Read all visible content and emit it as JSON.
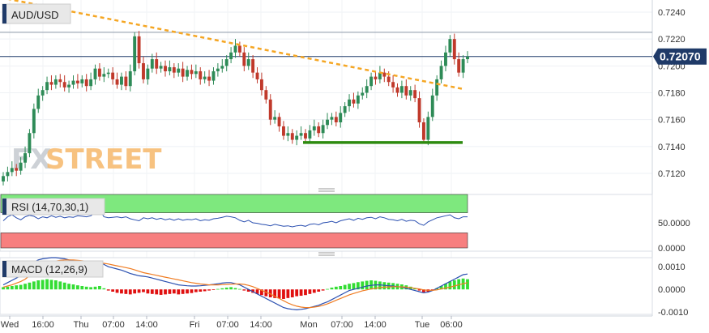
{
  "window": {
    "symbol": "AUD/USD"
  },
  "watermark": {
    "fx": "FX",
    "street": "STREET"
  },
  "price_panel": {
    "current_price_label": "0.72070",
    "y_ticks": [
      "0.7240",
      "0.7220",
      "0.7200",
      "0.7180",
      "0.7160",
      "0.7140",
      "0.7120"
    ]
  },
  "rsi_panel": {
    "label": "RSI (14,70,30,1)",
    "y_ticks": [
      "50.0000",
      "0.0000"
    ]
  },
  "macd_panel": {
    "label": "MACD (12,26,9)",
    "y_ticks": [
      "0.0010",
      "0.0000",
      "-0.0010"
    ]
  },
  "x_axis": {
    "labels": [
      "Wed",
      "16:00",
      "Thu",
      "07:00",
      "14:00",
      "Fri",
      "07:00",
      "14:00",
      "Mon",
      "07:00",
      "14:00",
      "Tue",
      "06:00"
    ]
  },
  "colors": {
    "up": "#2e8b57",
    "down": "#c0392b",
    "trendline": "#f5a623",
    "support": "#2e8b10",
    "price_line": "#1f3a68",
    "rsi_line": "#2a4fb0",
    "rsi_over": "#7ee87e",
    "rsi_under": "#f77f7f",
    "macd_line": "#2a4fb0",
    "signal_line": "#f07c22",
    "hist_pos": "#33dd33",
    "hist_neg": "#e01010"
  },
  "chart_data": [
    {
      "type": "candlestick",
      "title": "AUD/USD",
      "ylim": [
        0.711,
        0.725
      ],
      "current_price": 0.7207,
      "resistance_level": 0.7225,
      "x_labels": [
        "Wed",
        "16:00",
        "Thu",
        "07:00",
        "14:00",
        "Fri",
        "07:00",
        "14:00",
        "Mon",
        "07:00",
        "14:00",
        "Tue",
        "06:00"
      ],
      "close": [
        0.7118,
        0.7121,
        0.7124,
        0.7122,
        0.7128,
        0.7135,
        0.715,
        0.7168,
        0.7178,
        0.7182,
        0.7188,
        0.7186,
        0.719,
        0.7188,
        0.7184,
        0.7186,
        0.7189,
        0.7187,
        0.719,
        0.7185,
        0.719,
        0.7198,
        0.7192,
        0.7194,
        0.7195,
        0.719,
        0.7186,
        0.7192,
        0.7185,
        0.7196,
        0.7222,
        0.7202,
        0.719,
        0.7198,
        0.7205,
        0.7198,
        0.72,
        0.7196,
        0.7199,
        0.7195,
        0.7198,
        0.7192,
        0.7197,
        0.7194,
        0.7196,
        0.719,
        0.7192,
        0.7189,
        0.7196,
        0.7198,
        0.72,
        0.7205,
        0.721,
        0.7215,
        0.721,
        0.72,
        0.7205,
        0.7195,
        0.719,
        0.7182,
        0.7175,
        0.716,
        0.7162,
        0.7155,
        0.7148,
        0.715,
        0.7145,
        0.7148,
        0.715,
        0.7146,
        0.7152,
        0.7155,
        0.715,
        0.7156,
        0.716,
        0.7162,
        0.7158,
        0.7165,
        0.717,
        0.7175,
        0.7172,
        0.7178,
        0.718,
        0.7185,
        0.7192,
        0.719,
        0.7195,
        0.7192,
        0.7188,
        0.7184,
        0.718,
        0.7185,
        0.7178,
        0.7182,
        0.7176,
        0.7158,
        0.7145,
        0.7162,
        0.7178,
        0.719,
        0.72,
        0.721,
        0.722,
        0.7205,
        0.7195,
        0.7205,
        0.7207
      ]
    },
    {
      "type": "line",
      "title": "RSI (14,70,30,1)",
      "ylim": [
        0,
        100
      ],
      "overbought": 70,
      "oversold": 30,
      "values": [
        54,
        62,
        66,
        60,
        56,
        62,
        65,
        63,
        58,
        62,
        60,
        64,
        61,
        63,
        60,
        62,
        61,
        64,
        63,
        62,
        64,
        70,
        75,
        62,
        60,
        61,
        62,
        60,
        62,
        58,
        56,
        54,
        60,
        58,
        60,
        57,
        59,
        56,
        58,
        55,
        58,
        55,
        57,
        56,
        58,
        54,
        56,
        55,
        58,
        59,
        61,
        63,
        62,
        60,
        55,
        52,
        55,
        50,
        49,
        47,
        46,
        44,
        47,
        45,
        43,
        44,
        42,
        44,
        45,
        43,
        47,
        48,
        46,
        50,
        51,
        53,
        50,
        54,
        56,
        58,
        55,
        59,
        57,
        60,
        61,
        58,
        62,
        60,
        57,
        56,
        54,
        57,
        53,
        55,
        54,
        48,
        45,
        52,
        56,
        60,
        62,
        64,
        66,
        60,
        58,
        62,
        62
      ]
    },
    {
      "type": "bar+line",
      "title": "MACD (12,26,9)",
      "ylim": [
        -0.0011,
        0.0014
      ],
      "histogram": [
        0.0001,
        0.00012,
        0.00015,
        0.00018,
        0.0002,
        0.00025,
        0.0003,
        0.00035,
        0.0004,
        0.00042,
        0.00045,
        0.00042,
        0.0004,
        0.00035,
        0.0003,
        0.00025,
        0.00022,
        0.00018,
        0.00015,
        0.00012,
        0.0001,
        0.00012,
        0.00015,
        5e-05,
        -5e-05,
        -0.0001,
        -0.00015,
        -0.00018,
        -0.0002,
        -0.00022,
        -0.00018,
        -0.00015,
        -0.00012,
        -0.00018,
        -0.0002,
        -0.00022,
        -0.00024,
        -0.00022,
        -0.0002,
        -0.00018,
        -0.00022,
        -0.0002,
        -0.00018,
        -0.00016,
        -0.00012,
        -0.0001,
        -8e-05,
        -5e-05,
        -2e-05,
        2e-05,
        5e-05,
        8e-05,
        0.0001,
        6e-05,
        2e-05,
        -5e-05,
        -0.0001,
        -0.00015,
        -0.0002,
        -0.00025,
        -0.0003,
        -0.00035,
        -0.00038,
        -0.0004,
        -0.00042,
        -0.00038,
        -0.00035,
        -0.0003,
        -0.00028,
        -0.00025,
        -0.0002,
        -0.00015,
        -0.0001,
        -5e-05,
        2e-05,
        8e-05,
        0.00012,
        0.00015,
        0.0002,
        0.00025,
        0.00028,
        0.00032,
        0.00035,
        0.00038,
        0.0004,
        0.00038,
        0.00035,
        0.00032,
        0.0003,
        0.00028,
        0.00025,
        0.00022,
        0.00018,
        0.00012,
        5e-05,
        -5e-05,
        -0.00012,
        -0.0001,
        -5e-05,
        5e-05,
        0.00015,
        0.00025,
        0.00035,
        0.0004,
        0.00045,
        0.00048,
        0.00045
      ],
      "macd": [
        0.0002,
        0.0003,
        0.0004,
        0.0005,
        0.0006,
        0.0008,
        0.001,
        0.0012,
        0.0013,
        0.00135,
        0.00138,
        0.0014,
        0.0014,
        0.00138,
        0.00135,
        0.0013,
        0.00128,
        0.00125,
        0.0012,
        0.00118,
        0.00115,
        0.00118,
        0.0012,
        0.0011,
        0.001,
        0.00095,
        0.0009,
        0.00085,
        0.00078,
        0.0007,
        0.00065,
        0.0006,
        0.00058,
        0.00055,
        0.0005,
        0.00045,
        0.0004,
        0.00035,
        0.0003,
        0.00025,
        0.0002,
        0.00018,
        0.00016,
        0.00015,
        0.00015,
        0.00016,
        0.00018,
        0.0002,
        0.00022,
        0.00025,
        0.00028,
        0.0003,
        0.0003,
        0.00025,
        0.0002,
        0.0001,
        0.0,
        -0.0001,
        -0.0002,
        -0.0003,
        -0.0004,
        -0.0005,
        -0.0006,
        -0.0007,
        -0.0008,
        -0.00085,
        -0.00088,
        -0.0009,
        -0.00088,
        -0.00085,
        -0.0008,
        -0.00075,
        -0.0007,
        -0.00062,
        -0.00055,
        -0.00045,
        -0.00035,
        -0.00025,
        -0.00015,
        -5e-05,
        0.0,
        5e-05,
        0.0001,
        0.00015,
        0.00018,
        0.0002,
        0.0002,
        0.00018,
        0.00016,
        0.00015,
        0.00012,
        0.0001,
        5e-05,
        0.0,
        -5e-05,
        -0.0001,
        -0.00015,
        -0.00012,
        -5e-05,
        5e-05,
        0.00015,
        0.00025,
        0.00035,
        0.00045,
        0.00055,
        0.00065,
        0.00068
      ],
      "signal": [
        0.0001,
        0.00015,
        0.0002,
        0.00028,
        0.00035,
        0.00045,
        0.0006,
        0.00075,
        0.0009,
        0.001,
        0.0011,
        0.00118,
        0.00125,
        0.00128,
        0.0013,
        0.0013,
        0.0013,
        0.00128,
        0.00126,
        0.00124,
        0.00122,
        0.0012,
        0.00118,
        0.00115,
        0.00112,
        0.00108,
        0.00104,
        0.001,
        0.00096,
        0.00092,
        0.00086,
        0.0008,
        0.00074,
        0.0007,
        0.00066,
        0.00062,
        0.00058,
        0.00054,
        0.0005,
        0.00046,
        0.00042,
        0.00038,
        0.00034,
        0.0003,
        0.00027,
        0.00024,
        0.00022,
        0.0002,
        0.0002,
        0.0002,
        0.00021,
        0.00022,
        0.00023,
        0.00024,
        0.00024,
        0.00022,
        0.00018,
        0.00012,
        4e-05,
        -4e-05,
        -0.00012,
        -0.0002,
        -0.0003,
        -0.0004,
        -0.0005,
        -0.0006,
        -0.00068,
        -0.00074,
        -0.00078,
        -0.0008,
        -0.0008,
        -0.00078,
        -0.00075,
        -0.0007,
        -0.00064,
        -0.00056,
        -0.00048,
        -0.0004,
        -0.00032,
        -0.00024,
        -0.00018,
        -0.00012,
        -6e-05,
        -2e-05,
        2e-05,
        5e-05,
        8e-05,
        0.0001,
        0.00011,
        0.00012,
        0.00012,
        0.00011,
        0.0001,
        8e-05,
        5e-05,
        2e-05,
        -2e-05,
        -4e-05,
        -4e-05,
        -2e-05,
        2e-05,
        6e-05,
        0.0001,
        0.00015,
        0.0002,
        0.00025,
        0.0003
      ]
    }
  ]
}
